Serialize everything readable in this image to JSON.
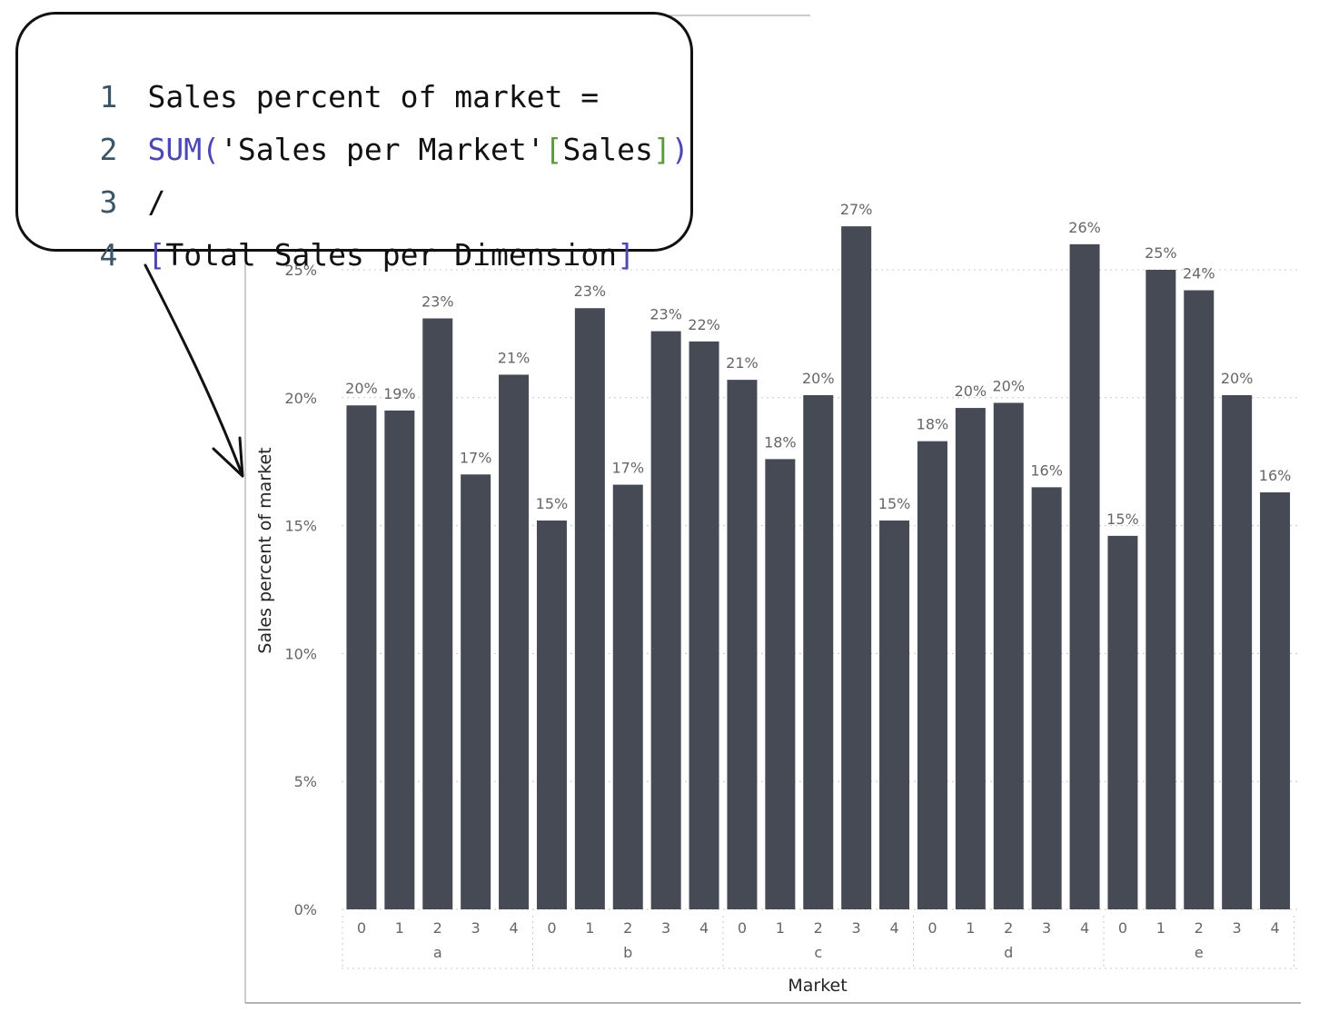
{
  "code": {
    "lines": [
      {
        "num": "1",
        "text": "Sales percent of market ="
      },
      {
        "num": "2",
        "fn": "SUM(",
        "str": "'Sales per Market'",
        "bo": "[",
        "col": "Sales",
        "bc": "]",
        "pc": ")"
      },
      {
        "num": "3",
        "text": "/"
      },
      {
        "num": "4",
        "bo": "[",
        "measure": "Total Sales per Dimension",
        "bc": "]"
      }
    ]
  },
  "chart_data": {
    "type": "bar",
    "xlabel": "Market",
    "ylabel": "Sales percent of market",
    "ylim": [
      0,
      27
    ],
    "yticks": [
      "0%",
      "5%",
      "10%",
      "15%",
      "20%",
      "25%"
    ],
    "ytick_values": [
      0,
      5,
      10,
      15,
      20,
      25
    ],
    "grid": true,
    "groups": [
      "a",
      "b",
      "c",
      "d",
      "e"
    ],
    "categories": [
      "0",
      "1",
      "2",
      "3",
      "4"
    ],
    "values": [
      [
        19.7,
        19.5,
        23.1,
        17.0,
        20.9
      ],
      [
        15.2,
        23.5,
        16.6,
        22.6,
        22.2
      ],
      [
        20.7,
        17.6,
        20.1,
        26.7,
        15.2
      ],
      [
        18.3,
        19.6,
        19.8,
        16.5,
        26.0
      ],
      [
        14.6,
        25.0,
        24.2,
        20.1,
        16.3
      ]
    ],
    "labels": [
      [
        "20%",
        "19%",
        "23%",
        "17%",
        "21%"
      ],
      [
        "15%",
        "23%",
        "17%",
        "23%",
        "22%"
      ],
      [
        "21%",
        "18%",
        "20%",
        "27%",
        "15%"
      ],
      [
        "18%",
        "20%",
        "20%",
        "16%",
        "26%"
      ],
      [
        "15%",
        "25%",
        "24%",
        "20%",
        "16%"
      ]
    ],
    "bar_color": "#454a55"
  }
}
